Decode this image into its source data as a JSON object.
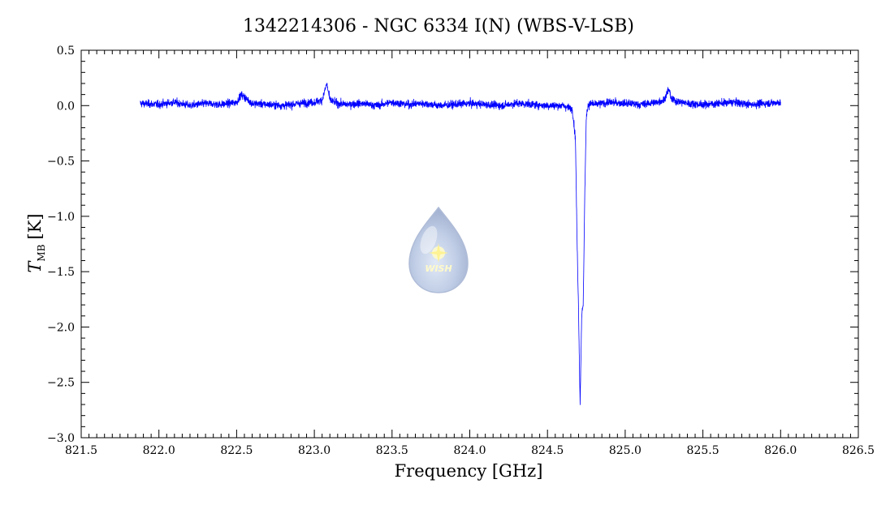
{
  "chart_data": {
    "type": "line",
    "title": "1342214306 - NGC 6334 I(N) (WBS-V-LSB)",
    "xlabel": "Frequency [GHz]",
    "ylabel": {
      "symbol": "T",
      "subscript": "MB",
      "unit": "[K]"
    },
    "xlim": [
      821.5,
      826.5
    ],
    "ylim": [
      -3.0,
      0.5
    ],
    "xticks": [
      821.5,
      822.0,
      822.5,
      823.0,
      823.5,
      824.0,
      824.5,
      825.0,
      825.5,
      826.0,
      826.5
    ],
    "xtick_labels": [
      "821.5",
      "822.0",
      "822.5",
      "823.0",
      "823.5",
      "824.0",
      "824.5",
      "825.0",
      "825.5",
      "826.0",
      "826.5"
    ],
    "yticks": [
      -3.0,
      -2.5,
      -2.0,
      -1.5,
      -1.0,
      -0.5,
      0.0,
      0.5
    ],
    "ytick_labels": [
      "−3.0",
      "−2.5",
      "−2.0",
      "−1.5",
      "−1.0",
      "−0.5",
      "0.0",
      "0.5"
    ],
    "grid": false,
    "legend": null,
    "series": [
      {
        "color": "#0000ff",
        "x": [
          821.88,
          822.0,
          822.1,
          822.2,
          822.3,
          822.4,
          822.5,
          822.53,
          822.6,
          822.7,
          822.8,
          822.9,
          823.0,
          823.05,
          823.08,
          823.1,
          823.15,
          823.2,
          823.3,
          823.4,
          823.5,
          823.6,
          823.7,
          823.8,
          823.9,
          824.0,
          824.1,
          824.2,
          824.3,
          824.4,
          824.5,
          824.6,
          824.66,
          824.68,
          824.69,
          824.7,
          824.71,
          824.715,
          824.72,
          824.73,
          824.74,
          824.75,
          824.76,
          824.78,
          824.8,
          824.9,
          825.0,
          825.1,
          825.2,
          825.25,
          825.28,
          825.3,
          825.4,
          825.5,
          825.6,
          825.7,
          825.8,
          825.9,
          826.0
        ],
        "y": [
          0.02,
          0.01,
          0.03,
          0.0,
          0.02,
          0.01,
          0.03,
          0.1,
          0.02,
          0.01,
          0.0,
          0.02,
          0.03,
          0.05,
          0.2,
          0.05,
          0.02,
          0.01,
          0.02,
          0.0,
          0.03,
          0.01,
          0.02,
          0.0,
          0.01,
          0.02,
          0.01,
          0.0,
          0.02,
          0.01,
          0.0,
          0.0,
          -0.03,
          -0.3,
          -1.2,
          -1.85,
          -2.7,
          -2.3,
          -1.9,
          -1.8,
          -0.8,
          -0.1,
          0.0,
          0.02,
          0.01,
          0.03,
          0.02,
          0.01,
          0.03,
          0.05,
          0.15,
          0.05,
          0.02,
          0.01,
          0.02,
          0.03,
          0.01,
          0.02,
          0.03
        ],
        "noise_rms": 0.045
      }
    ]
  },
  "watermark": {
    "text": "WISH"
  }
}
